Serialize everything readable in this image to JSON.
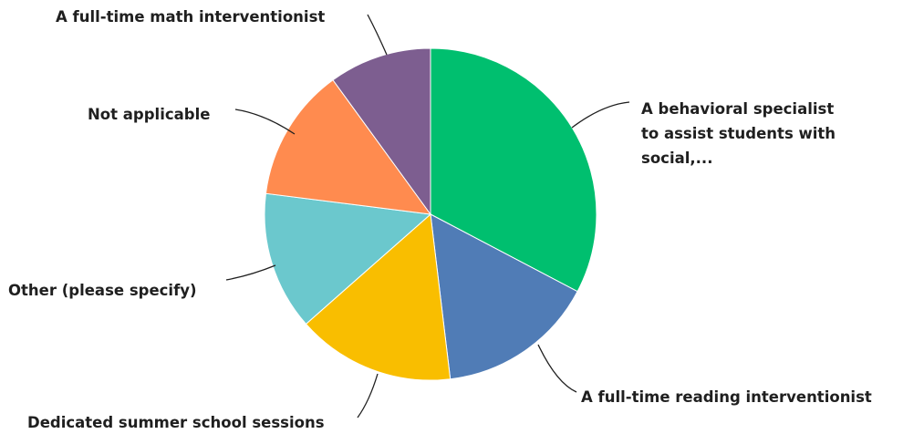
{
  "chart_data": {
    "type": "pie",
    "title": "",
    "series": [
      {
        "name": "A behavioral specialist to assist students with social,...",
        "label_lines": [
          "A behavioral specialist",
          "to assist students with",
          "social,..."
        ],
        "value": 32.7,
        "color": "#00bf6f"
      },
      {
        "name": "A full-time reading interventionist",
        "label_lines": [
          "A full-time reading interventionist"
        ],
        "value": 15.4,
        "color": "#507cb6"
      },
      {
        "name": "Dedicated summer school sessions",
        "label_lines": [
          "Dedicated summer school sessions"
        ],
        "value": 15.4,
        "color": "#f9be00"
      },
      {
        "name": "Other (please specify)",
        "label_lines": [
          "Other (please specify)"
        ],
        "value": 13.5,
        "color": "#6bc8cd"
      },
      {
        "name": "Not applicable",
        "label_lines": [
          "Not applicable"
        ],
        "value": 13.0,
        "color": "#ff8b4f"
      },
      {
        "name": "A full-time math interventionist",
        "label_lines": [
          "A full-time math interventionist"
        ],
        "value": 10.0,
        "color": "#7d5e90"
      }
    ]
  }
}
